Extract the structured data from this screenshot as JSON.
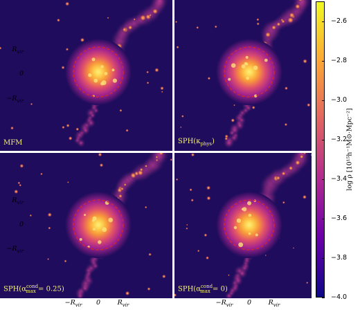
{
  "panels": [
    {
      "label": "MFM"
    },
    {
      "label": "SPH(κ",
      "label_sub": "phys",
      "label_tail": ")"
    },
    {
      "label": "SPH(α",
      "label_sup": "cond",
      "label_sub": "max",
      "label_tail": " = 0.25)"
    },
    {
      "label": "SPH(α",
      "label_sup": "cond",
      "label_sub": "max",
      "label_tail": " = 0)"
    }
  ],
  "y_ticks": [
    "R",
    "0",
    "−R"
  ],
  "x_ticks": [
    "−R",
    "0",
    "R"
  ],
  "tick_sub": "vir",
  "colorbar": {
    "ticks": [
      "−2.6",
      "−2.8",
      "−3.0",
      "−3.2",
      "−3.4",
      "−3.6",
      "−3.8",
      "−4.0"
    ],
    "tick_values": [
      -2.6,
      -2.8,
      -3.0,
      -3.2,
      -3.4,
      -3.6,
      -3.8,
      -4.0
    ],
    "range": [
      -4.0,
      -2.5
    ],
    "label": "log ρ [10¹⁵h⁻¹M⊙·Mpc⁻²]",
    "colors": [
      "#0d0887",
      "#6a00a8",
      "#b12a90",
      "#e16462",
      "#fca636",
      "#f0f921"
    ]
  },
  "circle_color": "#d4292c"
}
